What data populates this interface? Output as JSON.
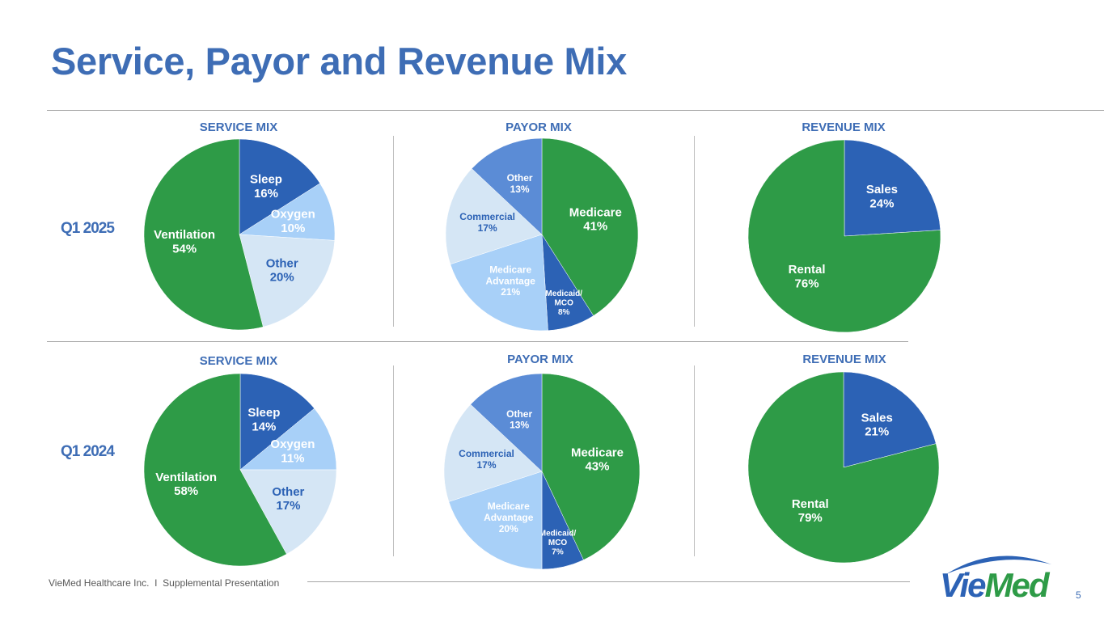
{
  "title": "Service, Payor and Revenue Mix",
  "footer": "VieMed Healthcare Inc.  I  Supplemental Presentation",
  "page_number": "5",
  "logo_text": "VieMed",
  "colors": {
    "title_blue": "#3E6DB5",
    "green": "#2E9B47",
    "dark_blue": "#2C62B5",
    "light_blue": "#A8D0F8",
    "pale_blue": "#D5E6F5",
    "mid_blue": "#5B8CD6"
  },
  "rows": [
    {
      "label": "Q1 2025"
    },
    {
      "label": "Q1 2024"
    }
  ],
  "chart_data": [
    {
      "type": "pie",
      "title": "SERVICE MIX",
      "period": "Q1 2025",
      "slices": [
        {
          "name": "Sleep",
          "value": 16,
          "pct": "16%",
          "color": "#2C62B5",
          "text_color": "#ffffff"
        },
        {
          "name": "Oxygen",
          "value": 10,
          "pct": "10%",
          "color": "#A8D0F8",
          "text_color": "#ffffff"
        },
        {
          "name": "Other",
          "value": 20,
          "pct": "20%",
          "color": "#D5E6F5",
          "text_color": "#2C62B5"
        },
        {
          "name": "Ventilation",
          "value": 54,
          "pct": "54%",
          "color": "#2E9B47",
          "text_color": "#ffffff"
        }
      ]
    },
    {
      "type": "pie",
      "title": "PAYOR MIX",
      "period": "Q1 2025",
      "slices": [
        {
          "name": "Medicare",
          "value": 41,
          "pct": "41%",
          "color": "#2E9B47",
          "text_color": "#ffffff"
        },
        {
          "name": "Medicaid/ MCO",
          "value": 8,
          "pct": "8%",
          "color": "#2C62B5",
          "text_color": "#ffffff"
        },
        {
          "name": "Medicare Advantage",
          "value": 21,
          "pct": "21%",
          "color": "#A8D0F8",
          "text_color": "#ffffff"
        },
        {
          "name": "Commercial",
          "value": 17,
          "pct": "17%",
          "color": "#D5E6F5",
          "text_color": "#2C62B5"
        },
        {
          "name": "Other",
          "value": 13,
          "pct": "13%",
          "color": "#5B8CD6",
          "text_color": "#ffffff"
        }
      ]
    },
    {
      "type": "pie",
      "title": "REVENUE MIX",
      "period": "Q1 2025",
      "slices": [
        {
          "name": "Sales",
          "value": 24,
          "pct": "24%",
          "color": "#2C62B5",
          "text_color": "#ffffff"
        },
        {
          "name": "Rental",
          "value": 76,
          "pct": "76%",
          "color": "#2E9B47",
          "text_color": "#ffffff"
        }
      ]
    },
    {
      "type": "pie",
      "title": "SERVICE MIX",
      "period": "Q1 2024",
      "slices": [
        {
          "name": "Sleep",
          "value": 14,
          "pct": "14%",
          "color": "#2C62B5",
          "text_color": "#ffffff"
        },
        {
          "name": "Oxygen",
          "value": 11,
          "pct": "11%",
          "color": "#A8D0F8",
          "text_color": "#ffffff"
        },
        {
          "name": "Other",
          "value": 17,
          "pct": "17%",
          "color": "#D5E6F5",
          "text_color": "#2C62B5"
        },
        {
          "name": "Ventilation",
          "value": 58,
          "pct": "58%",
          "color": "#2E9B47",
          "text_color": "#ffffff"
        }
      ]
    },
    {
      "type": "pie",
      "title": "PAYOR MIX",
      "period": "Q1 2024",
      "slices": [
        {
          "name": "Medicare",
          "value": 43,
          "pct": "43%",
          "color": "#2E9B47",
          "text_color": "#ffffff"
        },
        {
          "name": "Medicaid/ MCO",
          "value": 7,
          "pct": "7%",
          "color": "#2C62B5",
          "text_color": "#ffffff"
        },
        {
          "name": "Medicare Advantage",
          "value": 20,
          "pct": "20%",
          "color": "#A8D0F8",
          "text_color": "#ffffff"
        },
        {
          "name": "Commercial",
          "value": 17,
          "pct": "17%",
          "color": "#D5E6F5",
          "text_color": "#2C62B5"
        },
        {
          "name": "Other",
          "value": 13,
          "pct": "13%",
          "color": "#5B8CD6",
          "text_color": "#ffffff"
        }
      ]
    },
    {
      "type": "pie",
      "title": "REVENUE MIX",
      "period": "Q1 2024",
      "slices": [
        {
          "name": "Sales",
          "value": 21,
          "pct": "21%",
          "color": "#2C62B5",
          "text_color": "#ffffff"
        },
        {
          "name": "Rental",
          "value": 79,
          "pct": "79%",
          "color": "#2E9B47",
          "text_color": "#ffffff"
        }
      ]
    }
  ]
}
